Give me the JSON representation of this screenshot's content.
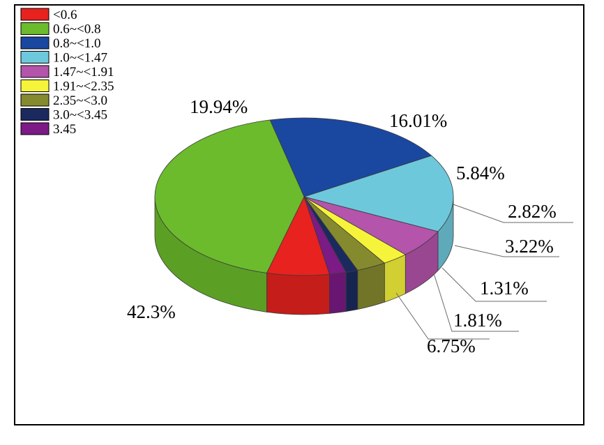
{
  "chart_data": {
    "type": "pie",
    "style": "3d-exploded-none",
    "legend_position": "top-left",
    "categories": [
      "<0.6",
      "0.6~<0.8",
      "0.8~<1.0",
      "1.0~<1.47",
      "1.47~<1.91",
      "1.91~<2.35",
      "2.35~<3.0",
      "3.0~<3.45",
      "3.45"
    ],
    "values": [
      6.75,
      42.3,
      19.94,
      16.01,
      5.84,
      2.82,
      3.22,
      1.31,
      1.81
    ],
    "labels": [
      "6.75%",
      "42.3%",
      "19.94%",
      "16.01%",
      "5.84%",
      "2.82%",
      "3.22%",
      "1.31%",
      "1.81%"
    ],
    "colors": [
      "#e8221e",
      "#6cbb2c",
      "#1a47a0",
      "#6ec8dc",
      "#b454ab",
      "#f6f43a",
      "#868a2e",
      "#1b2a5e",
      "#7c1a86"
    ]
  }
}
